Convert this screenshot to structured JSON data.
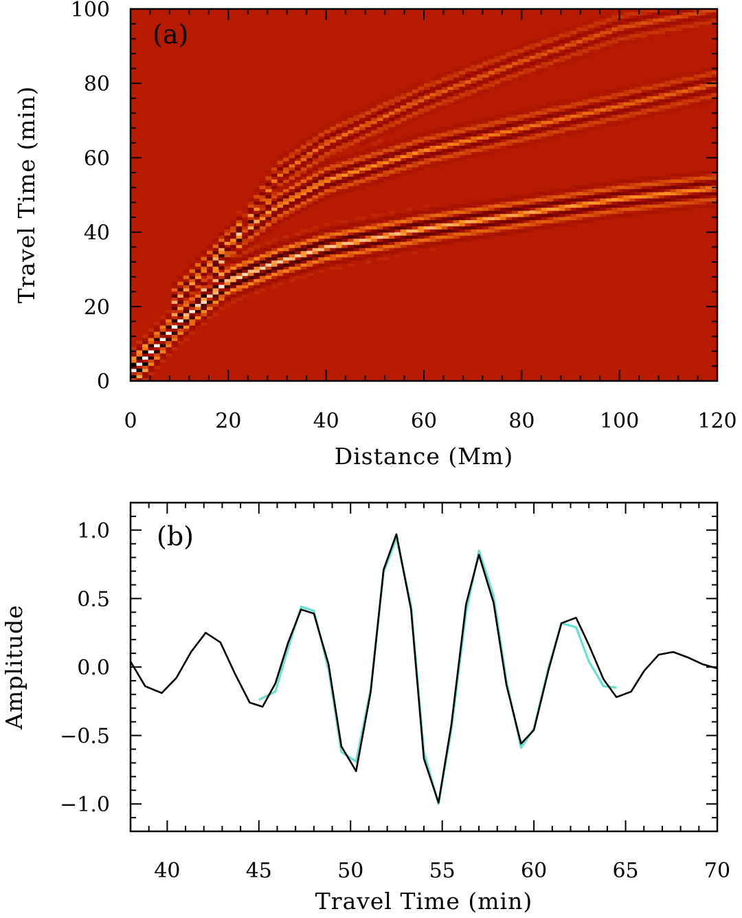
{
  "chart_data": [
    {
      "type": "heatmap",
      "panel_label": "(a)",
      "xlabel": "Distance (Mm)",
      "ylabel": "Travel Time (min)",
      "xlim": [
        0,
        120
      ],
      "ylim": [
        0,
        100
      ],
      "xticks": [
        0,
        20,
        40,
        60,
        80,
        100,
        120
      ],
      "yticks": [
        0,
        20,
        40,
        60,
        80,
        100
      ],
      "xtick_labels": [
        "0",
        "20",
        "40",
        "60",
        "80",
        "100",
        "120"
      ],
      "ytick_labels": [
        "0",
        "20",
        "40",
        "60",
        "80",
        "100"
      ],
      "colormap": [
        "#000000",
        "#7a0000",
        "#b81a00",
        "#ff8c1a",
        "#ffffff"
      ],
      "background_color": "#b81a00",
      "panel_label_color": "#ffffff",
      "wave_branches": [
        {
          "distance": [
            0,
            10,
            20,
            30,
            40,
            60,
            80,
            100,
            120
          ],
          "travel_time": [
            2,
            16,
            27,
            32,
            36,
            41,
            45,
            49,
            52
          ],
          "amplitude": 1.0
        },
        {
          "distance": [
            8,
            20,
            30,
            40,
            60,
            80,
            100,
            120
          ],
          "travel_time": [
            20,
            37,
            47,
            54,
            62,
            68,
            74,
            80
          ],
          "amplitude": 0.65
        },
        {
          "distance": [
            15,
            30,
            40,
            60,
            80,
            100,
            120
          ],
          "travel_time": [
            25,
            55,
            64,
            76,
            86,
            95,
            100
          ],
          "amplitude": 0.45
        }
      ]
    },
    {
      "type": "line",
      "panel_label": "(b)",
      "xlabel": "Travel Time (min)",
      "ylabel": "Amplitude",
      "xlim": [
        38,
        70
      ],
      "ylim": [
        -1.2,
        1.2
      ],
      "xticks": [
        40,
        45,
        50,
        55,
        60,
        65,
        70
      ],
      "yticks": [
        -1.0,
        -0.5,
        0.0,
        0.5,
        1.0
      ],
      "xtick_labels": [
        "40",
        "45",
        "50",
        "55",
        "60",
        "65",
        "70"
      ],
      "ytick_labels": [
        "−1.0",
        "−0.5",
        "0.0",
        "0.5",
        "1.0"
      ],
      "series": [
        {
          "color": "#000000",
          "x": [
            38,
            38.8,
            39.7,
            40.5,
            41.3,
            42.1,
            42.9,
            43.7,
            44.5,
            45.2,
            45.9,
            46.6,
            47.3,
            48.0,
            48.8,
            49.5,
            50.3,
            51.1,
            51.8,
            52.5,
            53.3,
            54.0,
            54.8,
            55.5,
            56.3,
            57.0,
            57.8,
            58.5,
            59.3,
            60.0,
            60.8,
            61.5,
            62.3,
            63.0,
            63.8,
            64.5,
            65.3,
            66.0,
            66.8,
            67.6,
            68.4,
            69.2,
            70.0
          ],
          "y": [
            0.04,
            -0.14,
            -0.19,
            -0.08,
            0.11,
            0.25,
            0.18,
            -0.05,
            -0.26,
            -0.29,
            -0.12,
            0.18,
            0.42,
            0.39,
            0.02,
            -0.58,
            -0.76,
            -0.18,
            0.71,
            0.97,
            0.42,
            -0.67,
            -0.99,
            -0.42,
            0.46,
            0.82,
            0.47,
            -0.13,
            -0.56,
            -0.46,
            -0.02,
            0.32,
            0.36,
            0.16,
            -0.09,
            -0.22,
            -0.18,
            -0.03,
            0.09,
            0.11,
            0.07,
            0.02,
            -0.01
          ]
        },
        {
          "color": "#66e0d0",
          "x": [
            45.0,
            45.9,
            46.6,
            47.3,
            48.0,
            48.8,
            49.5,
            50.3,
            51.1,
            51.8,
            52.5,
            53.3,
            54.0,
            54.8,
            55.5,
            56.3,
            57.0,
            57.8,
            58.5,
            59.3,
            60.0,
            60.8,
            61.5,
            62.3,
            63.0,
            63.8,
            64.5
          ],
          "y": [
            -0.24,
            -0.18,
            0.14,
            0.44,
            0.41,
            -0.02,
            -0.62,
            -0.69,
            -0.16,
            0.69,
            0.94,
            0.45,
            -0.62,
            -1.0,
            -0.46,
            0.4,
            0.85,
            0.52,
            -0.1,
            -0.59,
            -0.45,
            0.0,
            0.32,
            0.29,
            0.04,
            -0.14,
            -0.15
          ]
        }
      ]
    }
  ]
}
